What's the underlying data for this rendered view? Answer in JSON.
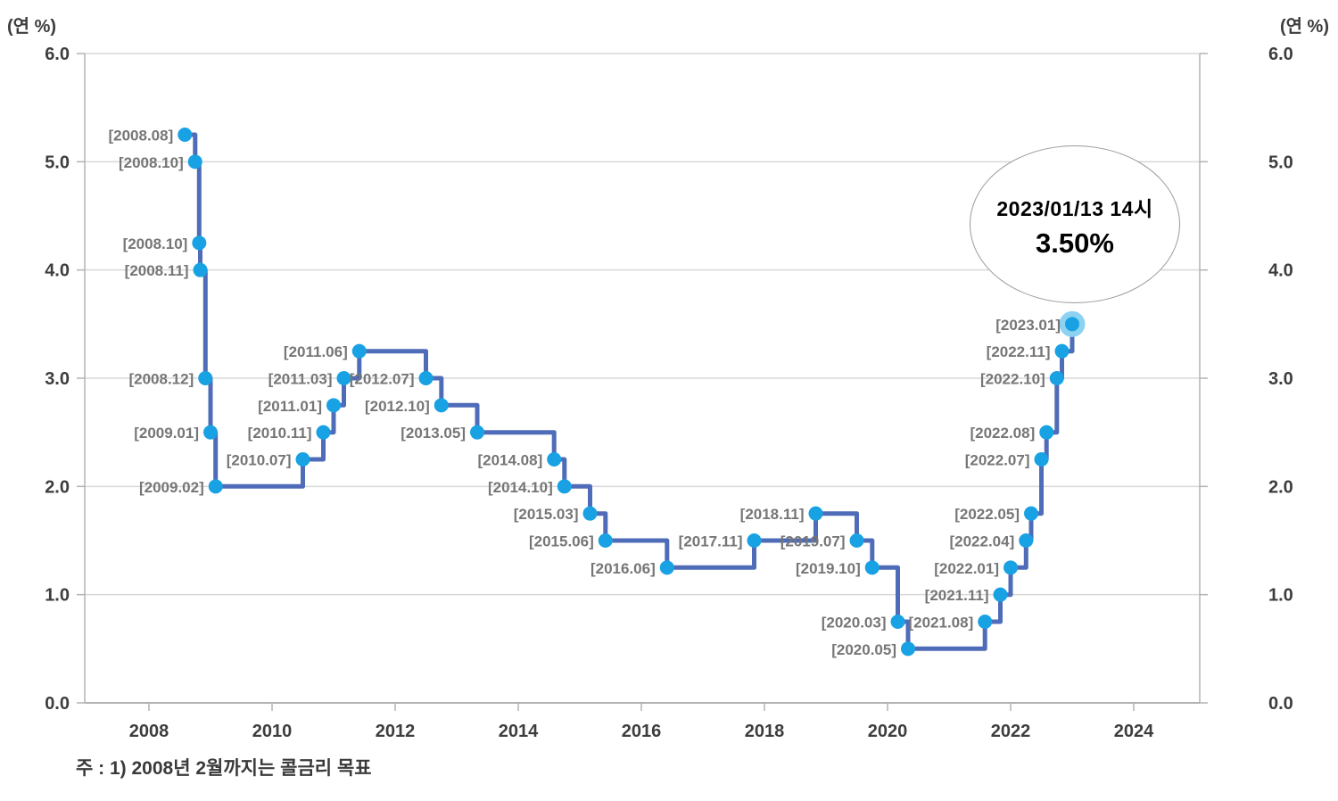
{
  "chart_data": {
    "type": "line",
    "step": "after",
    "y_unit_left": "(연 %)",
    "y_unit_right": "(연 %)",
    "ylim": [
      0,
      6
    ],
    "y_ticks": [
      0,
      1,
      2,
      3,
      4,
      5,
      6
    ],
    "y_tick_labels": [
      "0.0",
      "1.0",
      "2.0",
      "3.0",
      "4.0",
      "5.0",
      "6.0"
    ],
    "x_ticks": [
      2008,
      2010,
      2012,
      2014,
      2016,
      2018,
      2020,
      2022,
      2024
    ],
    "x_tick_labels": [
      "2008",
      "2010",
      "2012",
      "2014",
      "2016",
      "2018",
      "2020",
      "2022",
      "2024"
    ],
    "grid": true,
    "legend": "none",
    "points": [
      {
        "label": "[2008.08]",
        "year": 2008,
        "month": 8,
        "rate": 5.25
      },
      {
        "label": "[2008.10]",
        "year": 2008,
        "month": 10,
        "rate": 5.0
      },
      {
        "label": "[2008.10]",
        "year": 2008,
        "month": 10.8,
        "rate": 4.25
      },
      {
        "label": "[2008.11]",
        "year": 2008,
        "month": 11,
        "rate": 4.0
      },
      {
        "label": "[2008.12]",
        "year": 2008,
        "month": 12,
        "rate": 3.0
      },
      {
        "label": "[2009.01]",
        "year": 2009,
        "month": 1,
        "rate": 2.5
      },
      {
        "label": "[2009.02]",
        "year": 2009,
        "month": 2,
        "rate": 2.0
      },
      {
        "label": "[2010.07]",
        "year": 2010,
        "month": 7,
        "rate": 2.25
      },
      {
        "label": "[2010.11]",
        "year": 2010,
        "month": 11,
        "rate": 2.5
      },
      {
        "label": "[2011.01]",
        "year": 2011,
        "month": 1,
        "rate": 2.75
      },
      {
        "label": "[2011.03]",
        "year": 2011,
        "month": 3,
        "rate": 3.0
      },
      {
        "label": "[2011.06]",
        "year": 2011,
        "month": 6,
        "rate": 3.25
      },
      {
        "label": "[2012.07]",
        "year": 2012,
        "month": 7,
        "rate": 3.0
      },
      {
        "label": "[2012.10]",
        "year": 2012,
        "month": 10,
        "rate": 2.75
      },
      {
        "label": "[2013.05]",
        "year": 2013,
        "month": 5,
        "rate": 2.5
      },
      {
        "label": "[2014.08]",
        "year": 2014,
        "month": 8,
        "rate": 2.25
      },
      {
        "label": "[2014.10]",
        "year": 2014,
        "month": 10,
        "rate": 2.0
      },
      {
        "label": "[2015.03]",
        "year": 2015,
        "month": 3,
        "rate": 1.75
      },
      {
        "label": "[2015.06]",
        "year": 2015,
        "month": 6,
        "rate": 1.5
      },
      {
        "label": "[2016.06]",
        "year": 2016,
        "month": 6,
        "rate": 1.25
      },
      {
        "label": "[2017.11]",
        "year": 2017,
        "month": 11,
        "rate": 1.5
      },
      {
        "label": "[2018.11]",
        "year": 2018,
        "month": 11,
        "rate": 1.75
      },
      {
        "label": "[2019.07]",
        "year": 2019,
        "month": 7,
        "rate": 1.5
      },
      {
        "label": "[2019.10]",
        "year": 2019,
        "month": 10,
        "rate": 1.25
      },
      {
        "label": "[2020.03]",
        "year": 2020,
        "month": 3,
        "rate": 0.75
      },
      {
        "label": "[2020.05]",
        "year": 2020,
        "month": 5,
        "rate": 0.5
      },
      {
        "label": "[2021.08]",
        "year": 2021,
        "month": 8,
        "rate": 0.75
      },
      {
        "label": "[2021.11]",
        "year": 2021,
        "month": 11,
        "rate": 1.0
      },
      {
        "label": "[2022.01]",
        "year": 2022,
        "month": 1,
        "rate": 1.25
      },
      {
        "label": "[2022.04]",
        "year": 2022,
        "month": 4,
        "rate": 1.5
      },
      {
        "label": "[2022.05]",
        "year": 2022,
        "month": 5,
        "rate": 1.75
      },
      {
        "label": "[2022.07]",
        "year": 2022,
        "month": 7,
        "rate": 2.25
      },
      {
        "label": "[2022.08]",
        "year": 2022,
        "month": 8,
        "rate": 2.5
      },
      {
        "label": "[2022.10]",
        "year": 2022,
        "month": 10,
        "rate": 3.0
      },
      {
        "label": "[2022.11]",
        "year": 2022,
        "month": 11,
        "rate": 3.25
      },
      {
        "label": "[2023.01]",
        "year": 2023,
        "month": 1,
        "rate": 3.5,
        "highlight": true
      }
    ],
    "callout": {
      "line1": "2023/01/13 14시",
      "line2": "3.50%"
    },
    "note": "주 : 1) 2008년 2월까지는 콜금리 목표",
    "colors": {
      "line": "#4f6cb8",
      "marker": "#18a2e4",
      "marker_halo": "#8ed2f2",
      "grid": "#d9d9d9",
      "axis": "#b3b3b3",
      "data_label": "#767676",
      "tick_label": "#3d3d3d",
      "unit_label": "#3d3d3d",
      "note": "#3a3a3a",
      "callout_border": "#9a9a9a",
      "callout_text": "#000000"
    }
  }
}
